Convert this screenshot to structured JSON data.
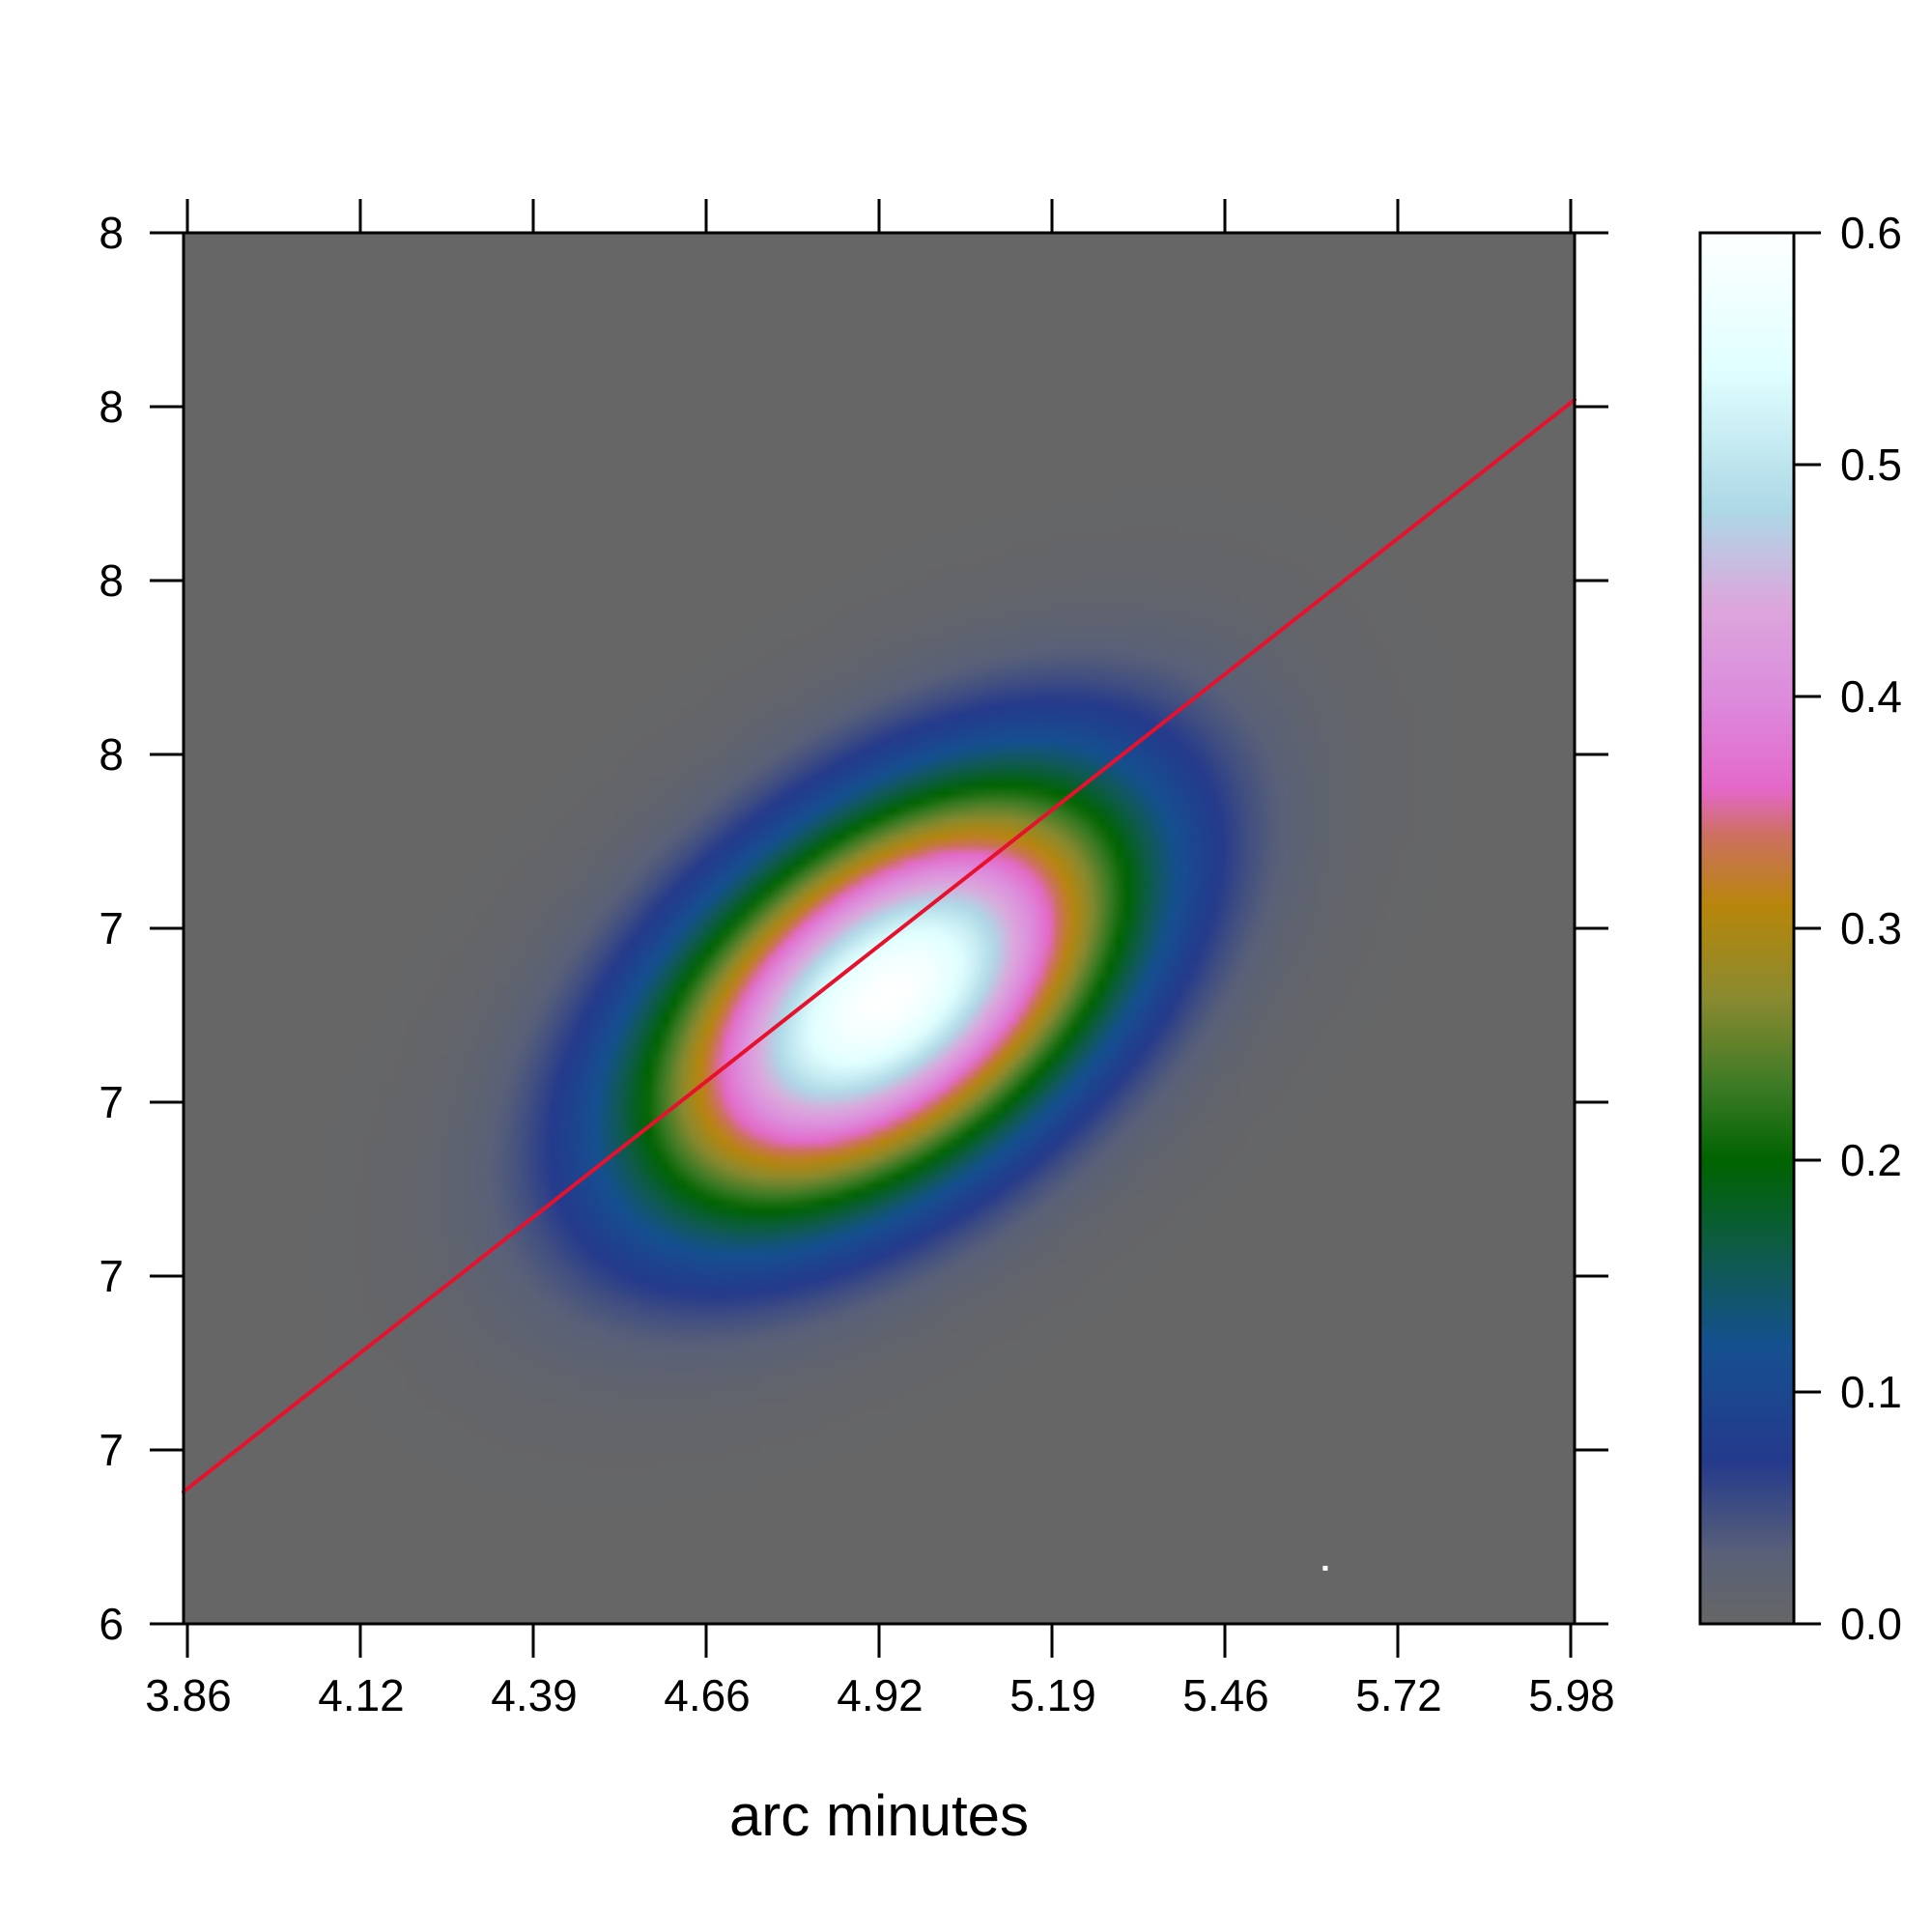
{
  "chart_data": {
    "type": "heatmap",
    "title": "",
    "xlabel": "arc minutes",
    "ylabel": "",
    "x_ticks": [
      "3.86",
      "4.12",
      "4.39",
      "4.66",
      "4.92",
      "5.19",
      "5.46",
      "5.72",
      "5.98"
    ],
    "y_ticks": [
      "6",
      "7",
      "7",
      "7",
      "7",
      "8",
      "8",
      "8",
      "8"
    ],
    "xlim": [
      3.86,
      5.98
    ],
    "ylim": [
      0,
      8
    ],
    "grid": false,
    "intensity": {
      "shape": "elliptical gaussian",
      "peak_value": 0.6,
      "peak_x": 4.93,
      "peak_y_frac": 0.45,
      "background_value": 0.0
    },
    "line": {
      "color": "#e8112d",
      "x": [
        3.86,
        5.98
      ],
      "y_frac": [
        0.095,
        0.88
      ]
    },
    "marker": {
      "x": 5.6,
      "y_frac": 0.04,
      "color": "#ffffff"
    },
    "colorbar": {
      "min": 0.0,
      "max": 0.6,
      "ticks": [
        "0.0",
        "0.1",
        "0.2",
        "0.3",
        "0.4",
        "0.5",
        "0.6"
      ],
      "tick_values": [
        0.0,
        0.1,
        0.2,
        0.3,
        0.4,
        0.5,
        0.6
      ],
      "stops": [
        {
          "v": 0.0,
          "color": "#666666"
        },
        {
          "v": 0.03,
          "color": "#5a6178"
        },
        {
          "v": 0.07,
          "color": "#253a8c"
        },
        {
          "v": 0.12,
          "color": "#155090"
        },
        {
          "v": 0.16,
          "color": "#0e5b4a"
        },
        {
          "v": 0.2,
          "color": "#006400"
        },
        {
          "v": 0.23,
          "color": "#3a7a25"
        },
        {
          "v": 0.27,
          "color": "#8a8a30"
        },
        {
          "v": 0.31,
          "color": "#b8860b"
        },
        {
          "v": 0.34,
          "color": "#cd7060"
        },
        {
          "v": 0.36,
          "color": "#e468c8"
        },
        {
          "v": 0.4,
          "color": "#dc8cdc"
        },
        {
          "v": 0.44,
          "color": "#dca8dc"
        },
        {
          "v": 0.48,
          "color": "#add8e6"
        },
        {
          "v": 0.54,
          "color": "#e0ffff"
        },
        {
          "v": 0.6,
          "color": "#ffffff"
        }
      ]
    }
  }
}
